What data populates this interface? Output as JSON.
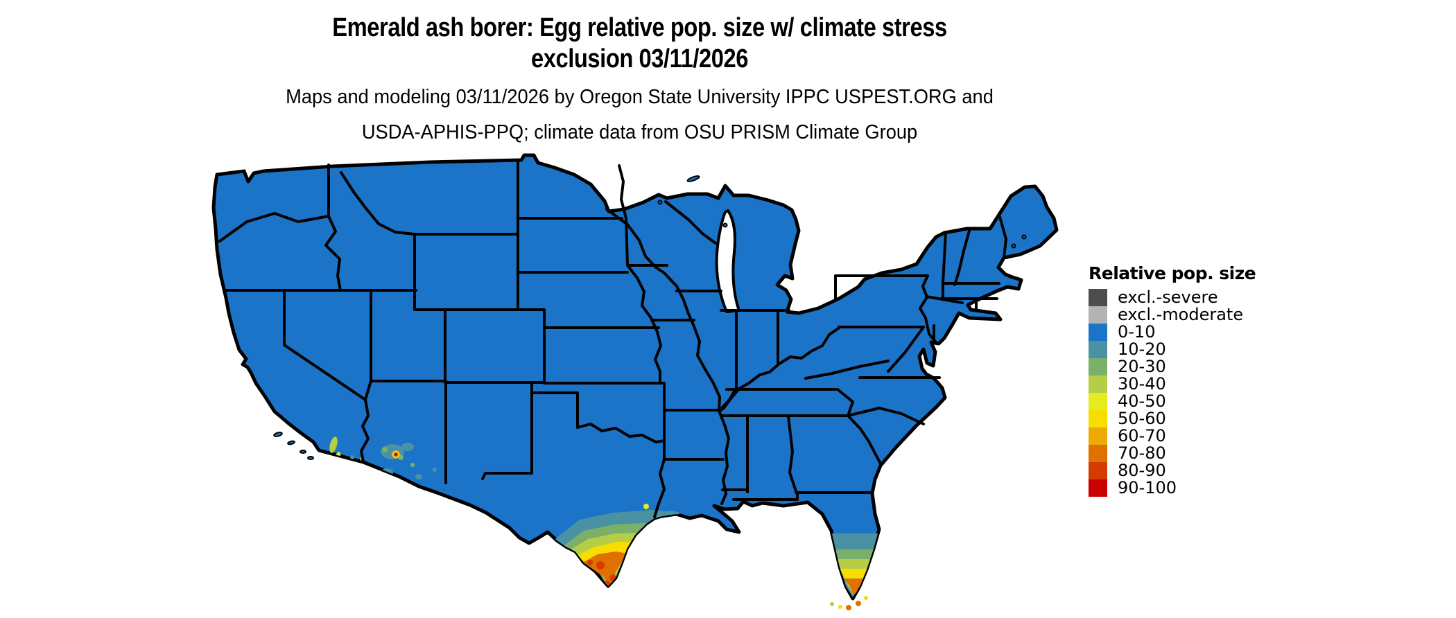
{
  "title": {
    "line1": "Emerald ash borer: Egg relative pop. size w/ climate stress",
    "line2": "exclusion 03/11/2026"
  },
  "subtitle": {
    "line1": "Maps and modeling 03/11/2026 by Oregon State University IPPC USPEST.ORG and",
    "line2": "USDA-APHIS-PPQ; climate data from OSU PRISM Climate Group"
  },
  "legend": {
    "title": "Relative pop. size",
    "entries": [
      {
        "label": "excl.-severe",
        "color": "#4D4D4D"
      },
      {
        "label": "excl.-moderate",
        "color": "#B3B3B3"
      },
      {
        "label": "0-10",
        "color": "#1C74C9"
      },
      {
        "label": "10-20",
        "color": "#4A92A3"
      },
      {
        "label": "20-30",
        "color": "#7AB06A"
      },
      {
        "label": "30-40",
        "color": "#B6CE45"
      },
      {
        "label": "40-50",
        "color": "#E6EC1F"
      },
      {
        "label": "50-60",
        "color": "#F8DE00"
      },
      {
        "label": "60-70",
        "color": "#EDA904"
      },
      {
        "label": "70-80",
        "color": "#E07000"
      },
      {
        "label": "80-90",
        "color": "#D53B00"
      },
      {
        "label": "90-100",
        "color": "#C90000"
      }
    ]
  },
  "map": {
    "type": "choropleth-raster",
    "region": "contiguous United States",
    "base_class": "0-10",
    "base_color": "#1C74C9",
    "border_color": "#000000",
    "water_color": "#FFFFFF",
    "hotspots": [
      {
        "area": "southern Texas (Rio Grande Valley and Gulf Coast)",
        "classes": "10-20 through 80-90"
      },
      {
        "area": "southern Florida peninsula and Keys",
        "classes": "10-20 through 70-80"
      },
      {
        "area": "Phoenix area, Arizona",
        "classes": "10-20 through 90-100"
      },
      {
        "area": "southern California coastal valleys",
        "classes": "20-30 through 50-60"
      }
    ]
  }
}
